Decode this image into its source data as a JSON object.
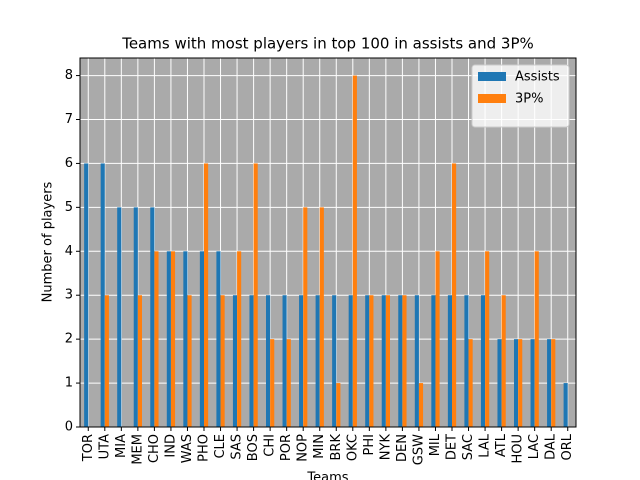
{
  "chart_data": {
    "type": "bar",
    "title": "Teams with most players in top 100 in assists and 3P%",
    "x_label": "Teams",
    "y_label": "Number of players",
    "categories": [
      "TOR",
      "UTA",
      "MIA",
      "MEM",
      "CHO",
      "IND",
      "WAS",
      "PHO",
      "CLE",
      "SAS",
      "BOS",
      "CHI",
      "POR",
      "NOP",
      "MIN",
      "BRK",
      "OKC",
      "PHI",
      "NYK",
      "DEN",
      "GSW",
      "MIL",
      "DET",
      "SAC",
      "LAL",
      "ATL",
      "HOU",
      "LAC",
      "DAL",
      "ORL"
    ],
    "series": [
      {
        "name": "Assists",
        "color": "#1f77b4",
        "values": [
          6,
          6,
          5,
          5,
          5,
          4,
          4,
          4,
          4,
          3,
          3,
          3,
          3,
          3,
          3,
          3,
          3,
          3,
          3,
          3,
          3,
          3,
          3,
          3,
          3,
          2,
          2,
          2,
          2,
          1
        ]
      },
      {
        "name": "3P%",
        "color": "#ff7f0e",
        "values": [
          0,
          3,
          0,
          3,
          4,
          4,
          3,
          6,
          3,
          4,
          6,
          2,
          2,
          5,
          5,
          1,
          8,
          3,
          3,
          3,
          1,
          4,
          6,
          2,
          4,
          3,
          2,
          4,
          2,
          0
        ]
      }
    ],
    "ylim": [
      0,
      8.4
    ],
    "yticks": [
      0,
      1,
      2,
      3,
      4,
      5,
      6,
      7,
      8
    ],
    "grid": true,
    "background": "#aaaaaa",
    "legend": "upper right"
  }
}
